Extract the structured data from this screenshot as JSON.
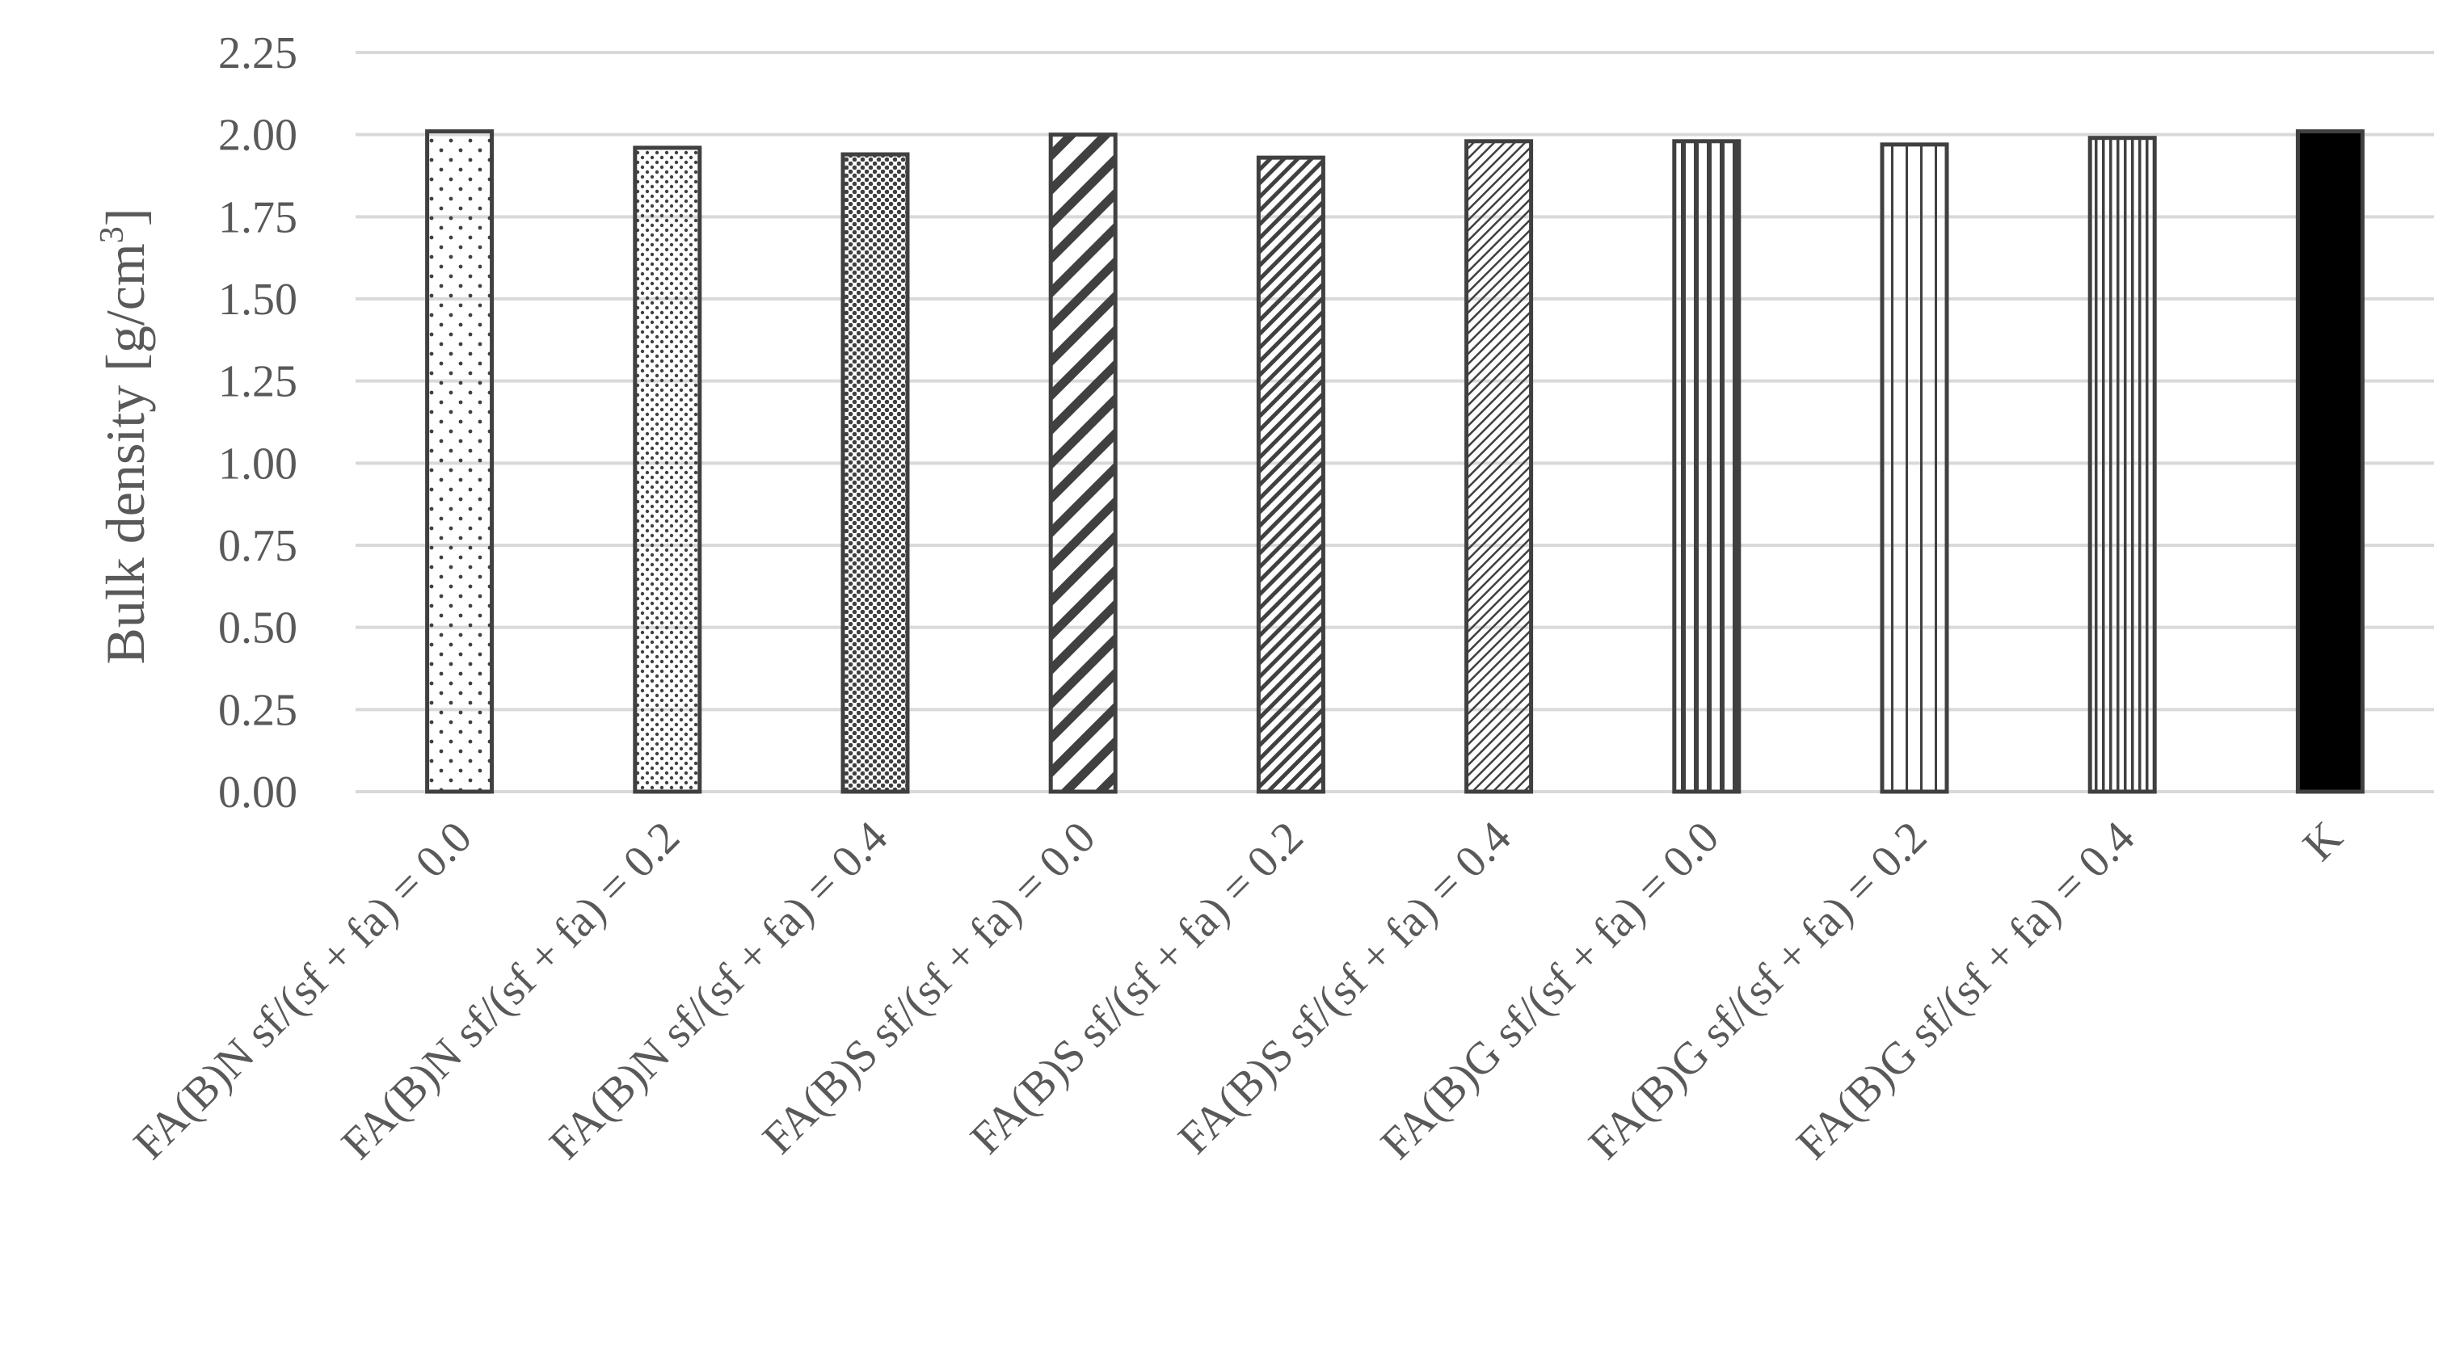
{
  "chart_data": {
    "type": "bar",
    "title": "",
    "xlabel": "",
    "ylabel": "Bulk density [g/cm",
    "ylabel_sup": "3",
    "ylabel_close": "]",
    "ylim": [
      0,
      2.25
    ],
    "yticks": [
      "0.00",
      "0.25",
      "0.50",
      "0.75",
      "1.00",
      "1.25",
      "1.50",
      "1.75",
      "2.00",
      "2.25"
    ],
    "grid": true,
    "legend": "none",
    "categories": [
      "FA(B)N sf/(sf + fa) = 0.0",
      "FA(B)N sf/(sf + fa) = 0.2",
      "FA(B)N sf/(sf + fa) = 0.4",
      "FA(B)S sf/(sf + fa) = 0.0",
      "FA(B)S sf/(sf + fa) = 0.2",
      "FA(B)S sf/(sf + fa) = 0.4",
      "FA(B)G sf/(sf + fa) = 0.0",
      "FA(B)G sf/(sf + fa) = 0.2",
      "FA(B)G sf/(sf + fa) = 0.4",
      "K"
    ],
    "values": [
      2.01,
      1.96,
      1.94,
      2.0,
      1.93,
      1.98,
      1.98,
      1.97,
      1.99,
      2.01
    ],
    "bar_patterns": [
      "dots-sparse",
      "dots-medium",
      "dots-dense",
      "diag-wide",
      "diag-dense",
      "diag-fine",
      "vert-wide",
      "vert-medium",
      "vert-narrow",
      "solid"
    ],
    "colors": {
      "bar_outline": "#404040",
      "pattern": "#404040",
      "grid": "#d9d9d9",
      "text": "#595959",
      "solid": "#000000"
    }
  }
}
